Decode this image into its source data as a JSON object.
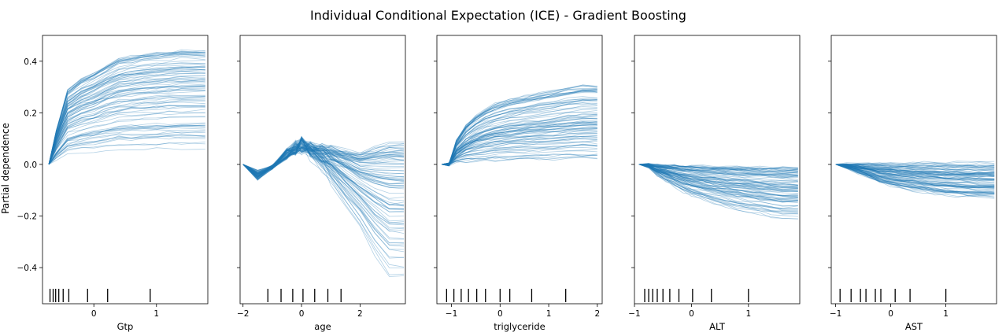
{
  "title": "Individual Conditional Expectation (ICE) - Gradient Boosting",
  "ylabel": "Partial dependence",
  "colors": {
    "ice": "#1f77b4",
    "axis": "#000000",
    "background": "#ffffff"
  },
  "chart_data": [
    {
      "type": "line",
      "xlabel": "Gtp",
      "xlim": [
        -0.82,
        1.82
      ],
      "ylim": [
        -0.54,
        0.5
      ],
      "xticks": [
        {
          "v": 0,
          "label": "0"
        },
        {
          "v": 1,
          "label": "1"
        }
      ],
      "yticks": [
        {
          "v": 0.4,
          "label": "0.4"
        },
        {
          "v": 0.2,
          "label": "0.2"
        },
        {
          "v": 0.0,
          "label": "0.0"
        },
        {
          "v": -0.2,
          "label": "−0.2"
        },
        {
          "v": -0.4,
          "label": "−0.4"
        }
      ],
      "x": [
        -0.72,
        -0.6,
        -0.42,
        -0.2,
        0.0,
        0.2,
        0.4,
        0.6,
        0.8,
        1.0,
        1.2,
        1.4,
        1.78
      ],
      "shape": [
        0,
        0.3,
        0.65,
        0.75,
        0.8,
        0.87,
        0.93,
        0.95,
        0.97,
        0.98,
        0.99,
        1,
        1
      ],
      "final_range": [
        0.06,
        0.44
      ],
      "n_lines": 90,
      "rug": [
        -0.7,
        -0.65,
        -0.61,
        -0.56,
        -0.49,
        -0.4,
        -0.1,
        0.22,
        0.9
      ]
    },
    {
      "type": "line",
      "xlabel": "age",
      "xlim": [
        -2.1,
        3.55
      ],
      "ylim": [
        -0.54,
        0.5
      ],
      "xticks": [
        {
          "v": -2,
          "label": "−2"
        },
        {
          "v": 0,
          "label": "0"
        },
        {
          "v": 2,
          "label": "2"
        }
      ],
      "yticks": [
        {
          "v": 0.4,
          "label": ""
        },
        {
          "v": 0.2,
          "label": ""
        },
        {
          "v": 0.0,
          "label": ""
        },
        {
          "v": -0.2,
          "label": ""
        },
        {
          "v": -0.4,
          "label": ""
        }
      ],
      "x": [
        -2.0,
        -1.5,
        -1.0,
        -0.5,
        -0.2,
        0.0,
        0.3,
        0.7,
        1.0,
        1.5,
        2.0,
        2.5,
        3.0,
        3.5
      ],
      "bump": [
        0,
        -0.04,
        -0.01,
        0.04,
        0.06,
        0.07,
        0.06,
        0.05,
        0.04,
        0.02,
        0.0,
        0.0,
        0.0,
        0.0
      ],
      "shape": [
        0,
        0,
        0,
        0,
        0,
        0,
        0.05,
        0.15,
        0.25,
        0.4,
        0.55,
        0.8,
        1,
        1
      ],
      "final_range": [
        -0.44,
        0.09
      ],
      "n_lines": 90,
      "rug": [
        -1.15,
        -0.7,
        -0.3,
        0.05,
        0.45,
        0.9,
        1.35
      ]
    },
    {
      "type": "line",
      "xlabel": "triglyceride",
      "xlim": [
        -1.3,
        2.1
      ],
      "ylim": [
        -0.54,
        0.5
      ],
      "xticks": [
        {
          "v": -1,
          "label": "−1"
        },
        {
          "v": 0,
          "label": "0"
        },
        {
          "v": 1,
          "label": "1"
        },
        {
          "v": 2,
          "label": "2"
        }
      ],
      "yticks": [
        {
          "v": 0.4,
          "label": ""
        },
        {
          "v": 0.2,
          "label": ""
        },
        {
          "v": 0.0,
          "label": ""
        },
        {
          "v": -0.2,
          "label": ""
        },
        {
          "v": -0.4,
          "label": ""
        }
      ],
      "x": [
        -1.2,
        -1.05,
        -0.9,
        -0.7,
        -0.5,
        -0.3,
        -0.1,
        0.2,
        0.5,
        0.8,
        1.1,
        1.4,
        1.7,
        2.0
      ],
      "shape": [
        0,
        0,
        0.3,
        0.5,
        0.62,
        0.7,
        0.76,
        0.82,
        0.86,
        0.9,
        0.93,
        0.97,
        1,
        1
      ],
      "final_range": [
        0.02,
        0.31
      ],
      "n_lines": 90,
      "rug": [
        -1.1,
        -0.95,
        -0.8,
        -0.65,
        -0.48,
        -0.3,
        0.0,
        0.2,
        0.65,
        1.35
      ]
    },
    {
      "type": "line",
      "xlabel": "ALT",
      "xlim": [
        -1.0,
        1.9
      ],
      "ylim": [
        -0.54,
        0.5
      ],
      "xticks": [
        {
          "v": -1,
          "label": "−1"
        },
        {
          "v": 0,
          "label": "0"
        },
        {
          "v": 1,
          "label": "1"
        }
      ],
      "yticks": [
        {
          "v": 0.4,
          "label": ""
        },
        {
          "v": 0.2,
          "label": ""
        },
        {
          "v": 0.0,
          "label": ""
        },
        {
          "v": -0.2,
          "label": ""
        },
        {
          "v": -0.4,
          "label": ""
        }
      ],
      "x": [
        -0.92,
        -0.75,
        -0.6,
        -0.45,
        -0.3,
        -0.15,
        0.0,
        0.2,
        0.4,
        0.6,
        0.8,
        1.0,
        1.2,
        1.4,
        1.6,
        1.87
      ],
      "shape": [
        0,
        0.05,
        0.2,
        0.3,
        0.4,
        0.5,
        0.58,
        0.65,
        0.72,
        0.78,
        0.83,
        0.88,
        0.92,
        0.96,
        1,
        1
      ],
      "final_range": [
        -0.21,
        -0.01
      ],
      "n_lines": 90,
      "rug": [
        -0.82,
        -0.75,
        -0.68,
        -0.6,
        -0.5,
        -0.38,
        -0.22,
        0.02,
        0.35,
        1.0
      ]
    },
    {
      "type": "line",
      "xlabel": "AST",
      "xlim": [
        -1.08,
        1.92
      ],
      "ylim": [
        -0.54,
        0.5
      ],
      "xticks": [
        {
          "v": -1,
          "label": "−1"
        },
        {
          "v": 0,
          "label": "0"
        },
        {
          "v": 1,
          "label": "1"
        }
      ],
      "yticks": [
        {
          "v": 0.4,
          "label": ""
        },
        {
          "v": 0.2,
          "label": ""
        },
        {
          "v": 0.0,
          "label": ""
        },
        {
          "v": -0.2,
          "label": ""
        },
        {
          "v": -0.4,
          "label": ""
        }
      ],
      "x": [
        -1.0,
        -0.8,
        -0.6,
        -0.4,
        -0.2,
        0.0,
        0.2,
        0.4,
        0.6,
        0.8,
        1.0,
        1.2,
        1.4,
        1.6,
        1.88
      ],
      "shape": [
        0,
        0.1,
        0.25,
        0.4,
        0.55,
        0.65,
        0.72,
        0.78,
        0.83,
        0.88,
        0.92,
        0.95,
        0.98,
        1,
        1
      ],
      "final_range": [
        -0.13,
        0.01
      ],
      "n_lines": 90,
      "rug": [
        -0.92,
        -0.72,
        -0.55,
        -0.45,
        -0.28,
        -0.18,
        0.08,
        0.35,
        1.0
      ]
    }
  ]
}
